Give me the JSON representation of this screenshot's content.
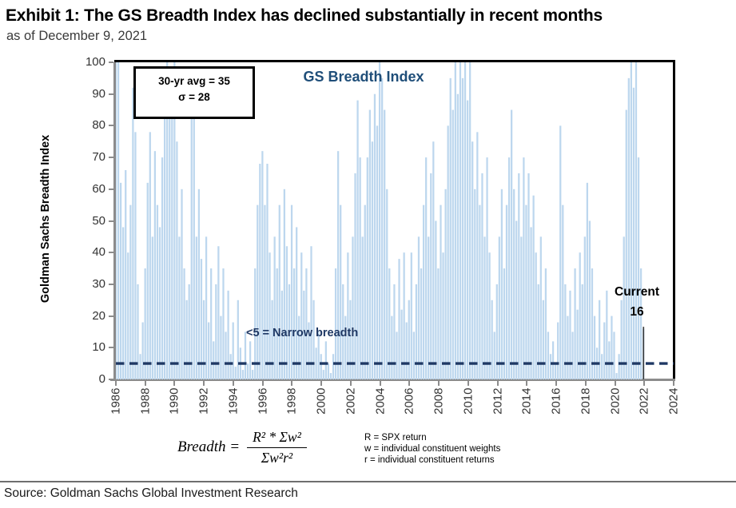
{
  "header": {
    "title": "Exhibit 1: The GS Breadth Index has declined substantially in recent months",
    "subtitle": "as of December 9, 2021"
  },
  "chart_data": {
    "type": "bar",
    "title": "GS Breadth Index",
    "ylabel": "Goldman Sachs Breadth Index",
    "xlabel": "",
    "ylim": [
      0,
      100
    ],
    "xlim": [
      1986,
      2024
    ],
    "grid": false,
    "y_ticks": [
      0,
      10,
      20,
      30,
      40,
      50,
      60,
      70,
      80,
      90,
      100
    ],
    "x_ticks": [
      1986,
      1988,
      1990,
      1992,
      1994,
      1996,
      1998,
      2000,
      2002,
      2004,
      2006,
      2008,
      2010,
      2012,
      2014,
      2016,
      2018,
      2020,
      2022,
      2024
    ],
    "bar_color": "#BDD7EE",
    "reference_line": {
      "value": 5,
      "label": "<5 = Narrow breadth",
      "color": "#1F3864",
      "style": "dashed"
    },
    "stats_box": {
      "line1": "30-yr avg = 35",
      "line2": "σ = 28"
    },
    "current_marker": {
      "label": "Current",
      "value_label": "16",
      "value": 16,
      "x": 2021.95
    },
    "series": [
      {
        "name": "GS Breadth Index",
        "start_year": 1986.0,
        "end_year": 2021.94,
        "values": [
          100,
          100,
          62,
          48,
          66,
          40,
          55,
          92,
          78,
          30,
          8,
          18,
          35,
          62,
          78,
          45,
          72,
          55,
          48,
          70,
          85,
          100,
          95,
          88,
          100,
          75,
          45,
          60,
          35,
          25,
          30,
          92,
          85,
          45,
          60,
          38,
          25,
          45,
          18,
          35,
          12,
          30,
          42,
          20,
          35,
          15,
          28,
          8,
          18,
          4,
          25,
          10,
          3,
          15,
          5,
          12,
          3,
          35,
          55,
          68,
          72,
          55,
          68,
          40,
          25,
          45,
          35,
          55,
          28,
          60,
          42,
          30,
          55,
          35,
          48,
          20,
          40,
          28,
          35,
          18,
          42,
          25,
          10,
          15,
          8,
          3,
          12,
          5,
          2,
          8,
          35,
          72,
          55,
          30,
          20,
          40,
          25,
          45,
          65,
          88,
          70,
          45,
          55,
          70,
          85,
          75,
          90,
          80,
          100,
          95,
          85,
          60,
          35,
          20,
          30,
          15,
          38,
          22,
          40,
          18,
          25,
          40,
          15,
          30,
          45,
          35,
          55,
          70,
          45,
          65,
          75,
          50,
          35,
          55,
          40,
          60,
          80,
          95,
          85,
          100,
          90,
          100,
          95,
          100,
          88,
          100,
          75,
          60,
          78,
          55,
          65,
          45,
          70,
          40,
          25,
          15,
          30,
          45,
          60,
          35,
          55,
          70,
          85,
          60,
          50,
          65,
          45,
          70,
          55,
          65,
          48,
          58,
          40,
          30,
          45,
          25,
          35,
          15,
          8,
          12,
          5,
          18,
          80,
          55,
          30,
          20,
          28,
          15,
          35,
          22,
          40,
          30,
          45,
          62,
          50,
          35,
          20,
          10,
          25,
          8,
          18,
          28,
          12,
          20,
          15,
          2,
          8,
          25,
          45,
          85,
          95,
          100,
          92,
          100,
          70,
          35,
          16
        ]
      }
    ]
  },
  "formula": {
    "lhs": "Breadth =",
    "numerator": "R² * Σw²",
    "denominator": "Σw²r²",
    "legend": [
      "R = SPX return",
      "w = individual constituent weights",
      "r = individual constituent returns"
    ]
  },
  "footer": {
    "source": "Source: Goldman Sachs Global Investment Research"
  }
}
